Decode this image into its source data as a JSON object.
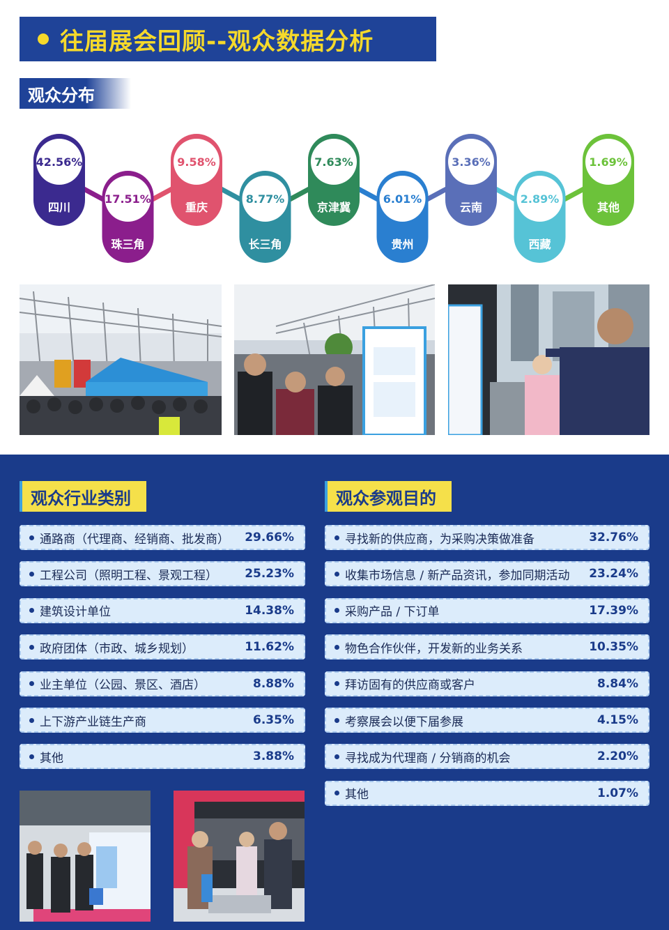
{
  "header": {
    "title": "往届展会回顾--观众数据分析"
  },
  "distribution": {
    "label": "观众分布",
    "regions": [
      {
        "name": "四川",
        "value": "42.56%",
        "color": "#3b2a8f"
      },
      {
        "name": "珠三角",
        "value": "17.51%",
        "color": "#8b1e8c"
      },
      {
        "name": "重庆",
        "value": "9.58%",
        "color": "#e0536e"
      },
      {
        "name": "长三角",
        "value": "8.77%",
        "color": "#2f8fa0"
      },
      {
        "name": "京津冀",
        "value": "7.63%",
        "color": "#2f8a5a"
      },
      {
        "name": "贵州",
        "value": "6.01%",
        "color": "#2a7fd0"
      },
      {
        "name": "云南",
        "value": "3.36%",
        "color": "#5a6fb8"
      },
      {
        "name": "西藏",
        "value": "2.89%",
        "color": "#56c3d6"
      },
      {
        "name": "其他",
        "value": "1.69%",
        "color": "#6cc23a"
      }
    ]
  },
  "industry": {
    "label": "观众行业类别",
    "items": [
      {
        "label": "通路商（代理商、经销商、批发商）",
        "value": "29.66%"
      },
      {
        "label": "工程公司（照明工程、景观工程）",
        "value": "25.23%"
      },
      {
        "label": "建筑设计单位",
        "value": "14.38%"
      },
      {
        "label": "政府团体（市政、城乡规划）",
        "value": "11.62%"
      },
      {
        "label": "业主单位（公园、景区、酒店）",
        "value": "8.88%"
      },
      {
        "label": "上下游产业链生产商",
        "value": "6.35%"
      },
      {
        "label": "其他",
        "value": "3.88%"
      }
    ]
  },
  "purpose": {
    "label": "观众参观目的",
    "items": [
      {
        "label": "寻找新的供应商，为采购决策做准备",
        "value": "32.76%"
      },
      {
        "label": "收集市场信息 / 新产品资讯，参加同期活动",
        "value": "23.24%"
      },
      {
        "label": "采购产品 / 下订单",
        "value": "17.39%"
      },
      {
        "label": "物色合作伙伴，开发新的业务关系",
        "value": "10.35%"
      },
      {
        "label": "拜访固有的供应商或客户",
        "value": "8.84%"
      },
      {
        "label": "考察展会以便下届参展",
        "value": "4.15%"
      },
      {
        "label": "寻找成为代理商 / 分销商的机会",
        "value": "2.20%"
      },
      {
        "label": "其他",
        "value": "1.07%"
      }
    ]
  }
}
